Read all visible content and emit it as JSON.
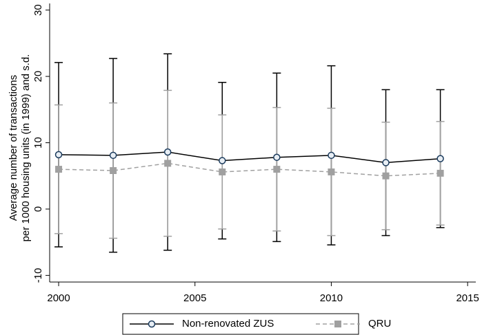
{
  "chart_data": {
    "type": "line",
    "ylabel": [
      "Average number of transactions",
      "per 1000 housing units (in 1999) and s.d."
    ],
    "x": [
      2000,
      2002,
      2004,
      2006,
      2008,
      2010,
      2012,
      2014
    ],
    "xlim": [
      1999.67,
      2015.3
    ],
    "xticks": [
      2000,
      2005,
      2010,
      2015
    ],
    "ylim": [
      -11,
      31
    ],
    "yticks": [
      -10,
      0,
      10,
      20,
      30
    ],
    "grid": false,
    "legend": "bottom",
    "series": [
      {
        "name": "Non-renovated ZUS",
        "color": "#000000",
        "marker": "circle",
        "dash": "solid",
        "values": [
          8.2,
          8.1,
          8.6,
          7.3,
          7.8,
          8.1,
          7.0,
          7.6
        ],
        "errors": [
          13.9,
          14.6,
          14.8,
          11.8,
          12.7,
          13.5,
          11.0,
          10.4
        ]
      },
      {
        "name": "QRU",
        "color": "#a0a0a0",
        "marker": "square",
        "dash": "dashed",
        "values": [
          6.0,
          5.8,
          6.9,
          5.6,
          6.0,
          5.6,
          5.0,
          5.4
        ],
        "errors": [
          9.7,
          10.2,
          11.0,
          8.6,
          9.3,
          9.6,
          8.1,
          7.8
        ]
      }
    ]
  }
}
